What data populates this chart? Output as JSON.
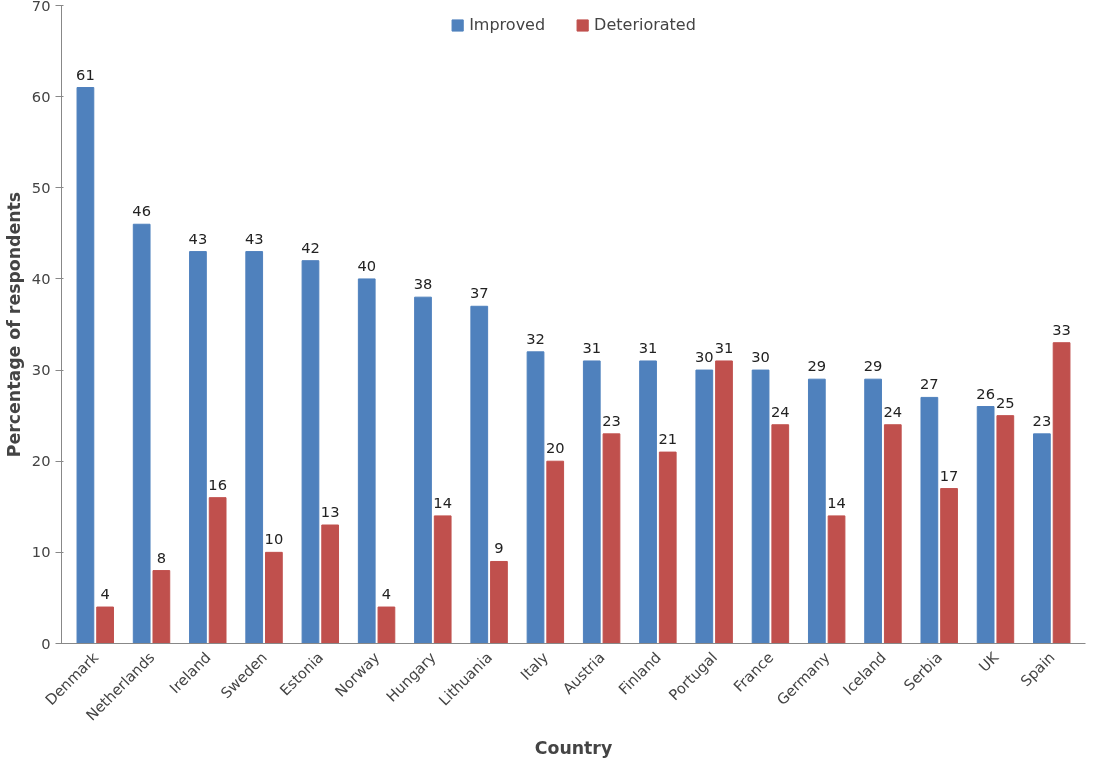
{
  "chart_data": {
    "type": "bar",
    "xlabel": "Country",
    "ylabel": "Percentage of respondents",
    "categories": [
      "Denmark",
      "Netherlands",
      "Ireland",
      "Sweden",
      "Estonia",
      "Norway",
      "Hungary",
      "Lithuania",
      "Italy",
      "Austria",
      "Finland",
      "Portugal",
      "France",
      "Germany",
      "Iceland",
      "Serbia",
      "UK",
      "Spain"
    ],
    "series": [
      {
        "name": "Improved",
        "color": "#4f81bd",
        "values": [
          61,
          46,
          43,
          43,
          42,
          40,
          38,
          37,
          32,
          31,
          31,
          30,
          30,
          29,
          29,
          27,
          26,
          23
        ]
      },
      {
        "name": "Deteriorated",
        "color": "#c0504d",
        "values": [
          4,
          8,
          16,
          10,
          13,
          4,
          14,
          9,
          20,
          23,
          21,
          31,
          24,
          14,
          24,
          17,
          25,
          33
        ]
      }
    ],
    "ylim": [
      0,
      70
    ],
    "yticks": [
      0,
      10,
      20,
      30,
      40,
      50,
      60,
      70
    ],
    "data_labels": true,
    "legend": "top",
    "grid": false
  }
}
